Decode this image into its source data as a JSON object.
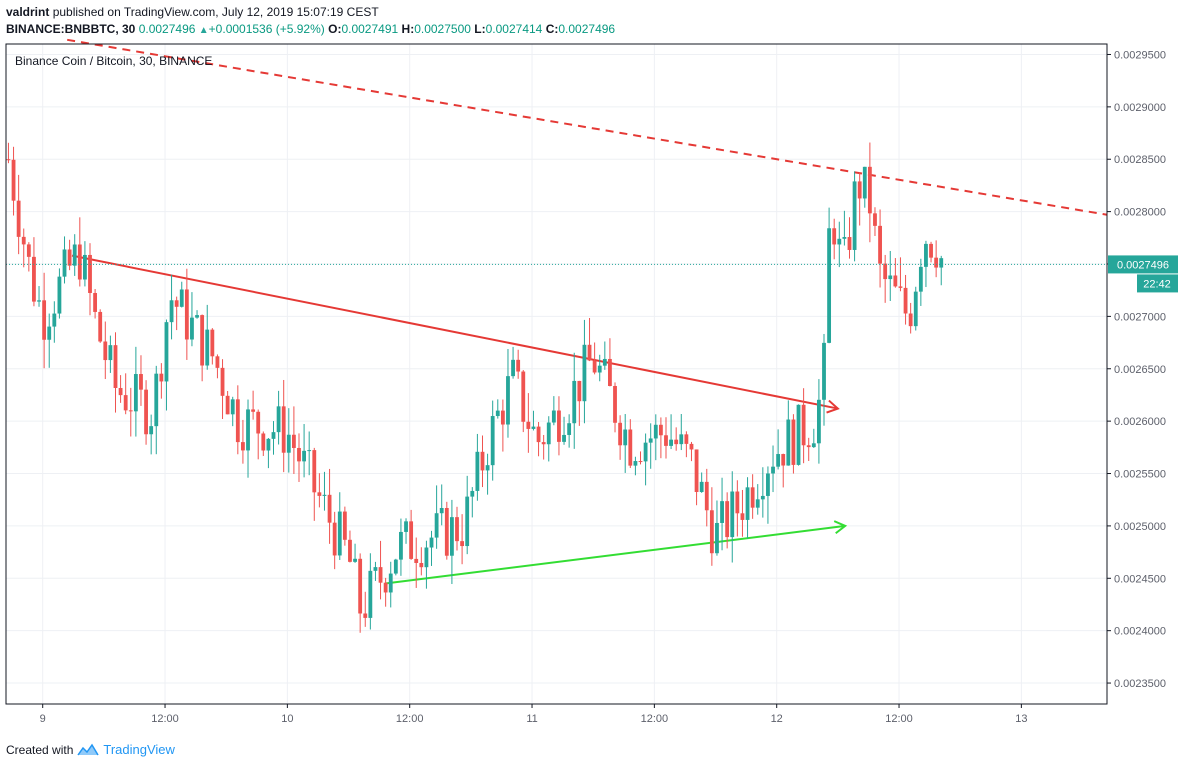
{
  "header": {
    "author": "valdrint",
    "published_text": "published on TradingView.com, July 12, 2019 15:07:19 CEST",
    "symbol": "BINANCE:BNBBTC, 30",
    "last": "0.0027496",
    "change": "+0.0001536 (+5.92%)",
    "o_label": "O:",
    "o": "0.0027491",
    "h_label": "H:",
    "h": "0.0027500",
    "l_label": "L:",
    "l": "0.0027414",
    "c_label": "C:",
    "c": "0.0027496"
  },
  "footer": {
    "created_with": "Created with",
    "brand": "TradingView"
  },
  "colors": {
    "up": "#26a69a",
    "down": "#ef5350",
    "resistance": "#e53935",
    "support": "#33dd33",
    "price_line": "#26a69a"
  },
  "chart_data": {
    "type": "candlestick",
    "title": "Binance Coin / Bitcoin, 30, BINANCE",
    "ylim": [
      0.00233,
      0.00296
    ],
    "y_ticks": [
      "0.0023500",
      "0.0024000",
      "0.0024500",
      "0.0025000",
      "0.0025500",
      "0.0026000",
      "0.0026500",
      "0.0027000",
      "0.0027500",
      "0.0028000",
      "0.0028500",
      "0.0029000",
      "0.0029500"
    ],
    "x_ticks": [
      {
        "label": "9",
        "day": 9.0
      },
      {
        "label": "12:00",
        "day": 9.5
      },
      {
        "label": "10",
        "day": 10.0
      },
      {
        "label": "12:00",
        "day": 10.5
      },
      {
        "label": "11",
        "day": 11.0
      },
      {
        "label": "12:00",
        "day": 11.5
      },
      {
        "label": "12",
        "day": 12.0
      },
      {
        "label": "12:00",
        "day": 12.5
      },
      {
        "label": "13",
        "day": 13.0
      }
    ],
    "x_range_days": [
      8.85,
      13.35
    ],
    "grid": true,
    "current_price": {
      "value": 0.0027496,
      "label": "0.0027496",
      "countdown": "22:42"
    },
    "anchor_points": [
      {
        "day": 8.86,
        "close": 0.00285
      },
      {
        "day": 8.95,
        "close": 0.00274
      },
      {
        "day": 9.0,
        "close": 0.0027
      },
      {
        "day": 9.12,
        "close": 0.00275
      },
      {
        "day": 9.15,
        "close": 0.00276
      },
      {
        "day": 9.22,
        "close": 0.00269
      },
      {
        "day": 9.3,
        "close": 0.00263
      },
      {
        "day": 9.45,
        "close": 0.00261
      },
      {
        "day": 9.52,
        "close": 0.00272
      },
      {
        "day": 9.7,
        "close": 0.00266
      },
      {
        "day": 9.8,
        "close": 0.0026
      },
      {
        "day": 10.0,
        "close": 0.00259
      },
      {
        "day": 10.1,
        "close": 0.00254
      },
      {
        "day": 10.25,
        "close": 0.00247
      },
      {
        "day": 10.3,
        "close": 0.00242
      },
      {
        "day": 10.38,
        "close": 0.00245
      },
      {
        "day": 10.45,
        "close": 0.00248
      },
      {
        "day": 10.6,
        "close": 0.00249
      },
      {
        "day": 10.72,
        "close": 0.0025
      },
      {
        "day": 10.82,
        "close": 0.00258
      },
      {
        "day": 10.92,
        "close": 0.00264
      },
      {
        "day": 11.02,
        "close": 0.00258
      },
      {
        "day": 11.15,
        "close": 0.00262
      },
      {
        "day": 11.25,
        "close": 0.00266
      },
      {
        "day": 11.4,
        "close": 0.00258
      },
      {
        "day": 11.55,
        "close": 0.00259
      },
      {
        "day": 11.65,
        "close": 0.00256
      },
      {
        "day": 11.75,
        "close": 0.00249
      },
      {
        "day": 11.85,
        "close": 0.00252
      },
      {
        "day": 11.98,
        "close": 0.00257
      },
      {
        "day": 12.1,
        "close": 0.00259
      },
      {
        "day": 12.15,
        "close": 0.0026
      },
      {
        "day": 12.19,
        "close": 0.00263
      },
      {
        "day": 12.22,
        "close": 0.00281
      },
      {
        "day": 12.27,
        "close": 0.00274
      },
      {
        "day": 12.33,
        "close": 0.00283
      },
      {
        "day": 12.38,
        "close": 0.00281
      },
      {
        "day": 12.42,
        "close": 0.00274
      },
      {
        "day": 12.48,
        "close": 0.00272
      },
      {
        "day": 12.54,
        "close": 0.0027
      },
      {
        "day": 12.6,
        "close": 0.00278
      },
      {
        "day": 12.65,
        "close": 0.00277
      },
      {
        "day": 12.68,
        "close": 0.00275
      }
    ],
    "trendlines": [
      {
        "name": "resistance-dashed",
        "style": "dashed",
        "from": {
          "day": 9.1,
          "price": 0.002964
        },
        "to": {
          "day": 13.35,
          "price": 0.002797
        }
      },
      {
        "name": "resistance",
        "style": "solid-arrow",
        "from": {
          "day": 9.12,
          "price": 0.002758
        },
        "to": {
          "day": 12.25,
          "price": 0.002612
        }
      },
      {
        "name": "support",
        "style": "solid-arrow",
        "from": {
          "day": 10.4,
          "price": 0.002445
        },
        "to": {
          "day": 12.28,
          "price": 0.0025
        }
      }
    ]
  }
}
